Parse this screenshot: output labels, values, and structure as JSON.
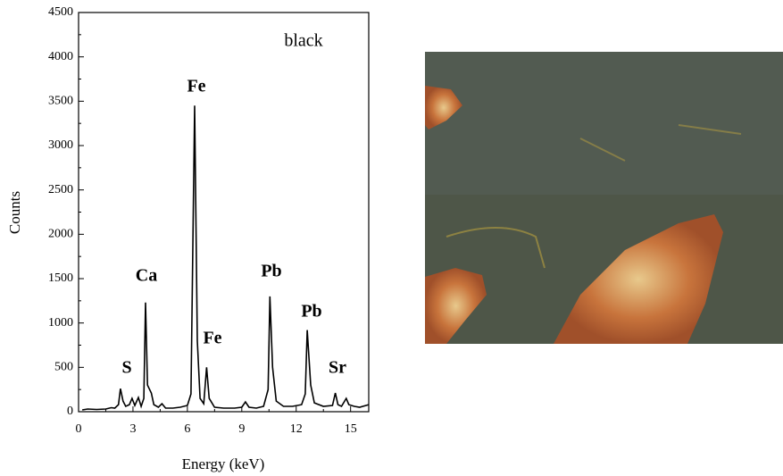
{
  "chart_data": {
    "type": "line",
    "x_label": "Energy (keV)",
    "y_label": "Counts",
    "label": "black",
    "annotations": [
      "S",
      "Ca",
      "Fe",
      "Fe",
      "Pb",
      "Pb",
      "Sr"
    ],
    "color": "#000000",
    "x": [
      0.2,
      0.5,
      1.0,
      1.5,
      1.8,
      2.0,
      2.2,
      2.31,
      2.45,
      2.6,
      2.8,
      2.95,
      3.1,
      3.3,
      3.45,
      3.6,
      3.69,
      3.8,
      4.01,
      4.15,
      4.4,
      4.6,
      4.8,
      5.2,
      5.6,
      6.0,
      6.2,
      6.4,
      6.55,
      6.7,
      6.9,
      7.06,
      7.2,
      7.5,
      8.0,
      8.6,
      9.0,
      9.2,
      9.4,
      9.8,
      10.2,
      10.45,
      10.55,
      10.7,
      10.9,
      11.3,
      11.8,
      12.3,
      12.5,
      12.61,
      12.8,
      13.0,
      13.5,
      14.0,
      14.16,
      14.3,
      14.5,
      14.76,
      14.9,
      15.2,
      15.5,
      16.0
    ],
    "values": [
      20,
      30,
      25,
      30,
      45,
      40,
      80,
      260,
      120,
      60,
      80,
      150,
      70,
      160,
      60,
      150,
      1230,
      300,
      210,
      80,
      50,
      90,
      40,
      40,
      50,
      70,
      200,
      3450,
      800,
      150,
      90,
      500,
      150,
      50,
      40,
      40,
      50,
      110,
      50,
      40,
      60,
      250,
      1300,
      500,
      120,
      60,
      60,
      80,
      200,
      920,
      300,
      100,
      60,
      70,
      210,
      80,
      60,
      150,
      80,
      60,
      50,
      80
    ],
    "xlim": [
      0,
      16
    ],
    "ylim": [
      0,
      4500
    ],
    "xticks": [
      0,
      3,
      6,
      9,
      12,
      15
    ],
    "xminorticks": [
      1.5,
      4.5,
      7.5,
      10.5,
      13.5
    ],
    "yticks": [
      0,
      500,
      1000,
      1500,
      2000,
      2500,
      3000,
      3500,
      4000,
      4500
    ],
    "yminorticks": [
      250,
      750,
      1250,
      1750,
      2250,
      2750,
      3250,
      3750,
      4250
    ]
  }
}
